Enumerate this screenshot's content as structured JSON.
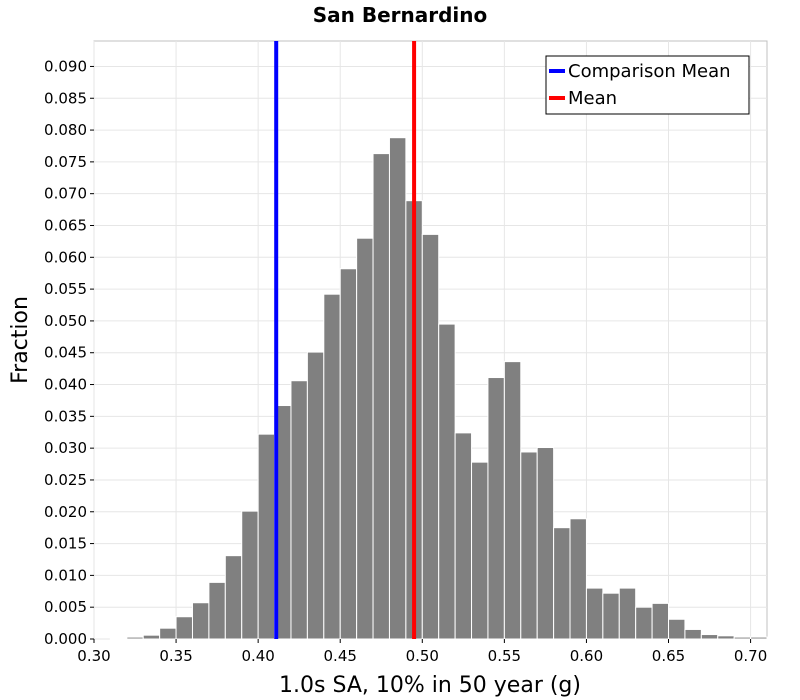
{
  "chart_data": {
    "type": "bar",
    "title": "San Bernardino",
    "xlabel": "1.0s SA, 10% in 50 year (g)",
    "ylabel": "Fraction",
    "xlim": [
      0.3,
      0.71
    ],
    "ylim": [
      0.0,
      0.094
    ],
    "x_ticks": [
      "0.30",
      "0.35",
      "0.40",
      "0.45",
      "0.50",
      "0.55",
      "0.60",
      "0.65",
      "0.70"
    ],
    "y_ticks": [
      "0.000",
      "0.005",
      "0.010",
      "0.015",
      "0.020",
      "0.025",
      "0.030",
      "0.035",
      "0.040",
      "0.045",
      "0.050",
      "0.055",
      "0.060",
      "0.065",
      "0.070",
      "0.075",
      "0.080",
      "0.085",
      "0.090"
    ],
    "grid": true,
    "bar_color": "#808080",
    "bin_width": 0.01,
    "bins": [
      {
        "x": 0.31,
        "y": 0.0001
      },
      {
        "x": 0.32,
        "y": 0.0003
      },
      {
        "x": 0.33,
        "y": 0.0006
      },
      {
        "x": 0.34,
        "y": 0.0017
      },
      {
        "x": 0.35,
        "y": 0.0035
      },
      {
        "x": 0.36,
        "y": 0.0057
      },
      {
        "x": 0.37,
        "y": 0.0089
      },
      {
        "x": 0.38,
        "y": 0.0131
      },
      {
        "x": 0.39,
        "y": 0.0201
      },
      {
        "x": 0.4,
        "y": 0.0322
      },
      {
        "x": 0.41,
        "y": 0.0367
      },
      {
        "x": 0.42,
        "y": 0.0406
      },
      {
        "x": 0.43,
        "y": 0.0451
      },
      {
        "x": 0.44,
        "y": 0.0542
      },
      {
        "x": 0.45,
        "y": 0.0582
      },
      {
        "x": 0.46,
        "y": 0.063
      },
      {
        "x": 0.47,
        "y": 0.0763
      },
      {
        "x": 0.48,
        "y": 0.0788
      },
      {
        "x": 0.49,
        "y": 0.0689
      },
      {
        "x": 0.5,
        "y": 0.0636
      },
      {
        "x": 0.51,
        "y": 0.0495
      },
      {
        "x": 0.52,
        "y": 0.0324
      },
      {
        "x": 0.53,
        "y": 0.0278
      },
      {
        "x": 0.54,
        "y": 0.0411
      },
      {
        "x": 0.55,
        "y": 0.0436
      },
      {
        "x": 0.56,
        "y": 0.0294
      },
      {
        "x": 0.57,
        "y": 0.0301
      },
      {
        "x": 0.58,
        "y": 0.0175
      },
      {
        "x": 0.59,
        "y": 0.0189
      },
      {
        "x": 0.6,
        "y": 0.008
      },
      {
        "x": 0.61,
        "y": 0.0072
      },
      {
        "x": 0.62,
        "y": 0.008
      },
      {
        "x": 0.63,
        "y": 0.005
      },
      {
        "x": 0.64,
        "y": 0.0056
      },
      {
        "x": 0.65,
        "y": 0.0031
      },
      {
        "x": 0.66,
        "y": 0.0015
      },
      {
        "x": 0.67,
        "y": 0.0007
      },
      {
        "x": 0.68,
        "y": 0.0005
      },
      {
        "x": 0.69,
        "y": 0.0003
      },
      {
        "x": 0.7,
        "y": 0.0003
      }
    ],
    "reference_lines": [
      {
        "name": "Comparison Mean",
        "x": 0.411,
        "color": "#0000ff"
      },
      {
        "name": "Mean",
        "x": 0.495,
        "color": "#ff0000"
      }
    ],
    "legend": {
      "placement": "top-right",
      "entries": [
        {
          "label": "Comparison Mean",
          "color": "#0000ff"
        },
        {
          "label": "Mean",
          "color": "#ff0000"
        }
      ]
    }
  }
}
